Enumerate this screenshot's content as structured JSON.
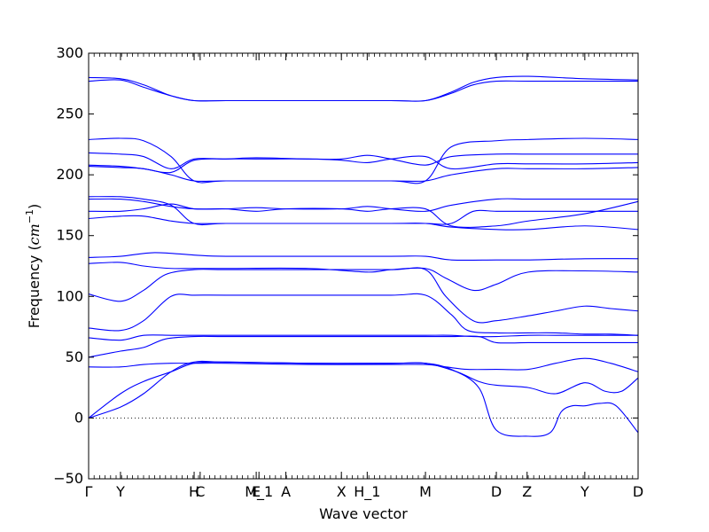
{
  "chart_data": {
    "type": "line",
    "title": "",
    "xlabel": "Wave vector",
    "ylabel": "Frequency ($cm^{-1}$)",
    "ylabel_text": "Frequency (",
    "ylabel_unit": "cm",
    "ylabel_exp": "−1",
    "ylabel_close": ")",
    "ylim": [
      -50,
      300
    ],
    "yticks": [
      -50,
      0,
      50,
      100,
      150,
      200,
      250,
      300
    ],
    "ytick_labels": [
      "−50",
      "0",
      "50",
      "100",
      "150",
      "200",
      "250",
      "300"
    ],
    "xlim": [
      0,
      100
    ],
    "high_symmetry_points": [
      {
        "label": "Γ",
        "x": 0
      },
      {
        "label": "Y",
        "x": 5.8
      },
      {
        "label": "H",
        "x": 19.2
      },
      {
        "label": "C",
        "x": 20.3
      },
      {
        "label": "E",
        "x": 30.5
      },
      {
        "label": "M_1",
        "x": 31.0
      },
      {
        "label": "A",
        "x": 35.9
      },
      {
        "label": "X",
        "x": 46.0
      },
      {
        "label": "H_1",
        "x": 50.7
      },
      {
        "label": "M",
        "x": 61.3
      },
      {
        "label": "D",
        "x": 74.2
      },
      {
        "label": "Z",
        "x": 79.8
      },
      {
        "label": "Y",
        "x": 90.3
      },
      {
        "label": "D",
        "x": 100
      }
    ],
    "grid": false,
    "zero_line": {
      "y": 0,
      "style": "dotted",
      "color": "#000000"
    },
    "line_color": "#0000ff",
    "series": [
      {
        "x": [
          0,
          5.8,
          10,
          15,
          19.2,
          25,
          40,
          55,
          61.3,
          66,
          71,
          74.2,
          80,
          84,
          86,
          88,
          90.3,
          93,
          96,
          100
        ],
        "values": [
          0,
          9,
          20,
          38,
          46,
          46,
          45,
          45,
          45,
          40,
          25,
          -10,
          -15,
          -12,
          5,
          10,
          10,
          12,
          10,
          -12
        ]
      },
      {
        "x": [
          0,
          5.8,
          10,
          15,
          19.2,
          25,
          40,
          55,
          61.3,
          67,
          71,
          74.2,
          80,
          85,
          90.3,
          94,
          97,
          100
        ],
        "values": [
          0,
          20,
          30,
          38,
          45,
          46,
          45,
          45,
          45,
          38,
          30,
          27,
          25,
          20,
          29,
          22,
          22,
          33
        ]
      },
      {
        "x": [
          0,
          5.8,
          10,
          15,
          19.2,
          25,
          40,
          55,
          61.3,
          65,
          69,
          74.2,
          80,
          85,
          90.3,
          95,
          100
        ],
        "values": [
          42,
          42,
          44,
          45,
          45,
          45,
          44,
          44,
          44,
          42,
          40,
          40,
          40,
          45,
          49,
          45,
          38
        ]
      },
      {
        "x": [
          0,
          5.8,
          10,
          14,
          19.2,
          25,
          40,
          55,
          61.3,
          66,
          71,
          74.2,
          80,
          85,
          90.3,
          95,
          100
        ],
        "values": [
          50,
          55,
          58,
          65,
          67,
          67,
          67,
          67,
          67,
          67,
          67,
          62,
          62,
          62,
          62,
          62,
          62
        ]
      },
      {
        "x": [
          0,
          5.8,
          10,
          15,
          19.2,
          25,
          40,
          55,
          61.3,
          66,
          70,
          74.2,
          80,
          85,
          90.3,
          95,
          100
        ],
        "values": [
          66,
          64,
          68,
          68,
          68,
          68,
          68,
          68,
          68,
          68,
          67,
          67,
          68,
          68,
          68,
          68,
          68
        ]
      },
      {
        "x": [
          0,
          5.8,
          10,
          15,
          19.2,
          25,
          40,
          55,
          61.3,
          66,
          69,
          74.2,
          80,
          85,
          90.3,
          95,
          100
        ],
        "values": [
          74,
          72,
          80,
          100,
          101,
          101,
          101,
          101,
          101,
          85,
          72,
          70,
          70,
          70,
          69,
          69,
          68
        ]
      },
      {
        "x": [
          0,
          5.8,
          10,
          14,
          19.2,
          25,
          40,
          55,
          61.3,
          65,
          70,
          74.2,
          80,
          85,
          90.3,
          95,
          100
        ],
        "values": [
          102,
          96,
          105,
          118,
          122,
          122,
          122,
          122,
          122,
          100,
          80,
          80,
          84,
          88,
          92,
          90,
          88
        ]
      },
      {
        "x": [
          0,
          5.8,
          10,
          15,
          19.2,
          25,
          40,
          50.7,
          55,
          61.3,
          65,
          70,
          74.2,
          80,
          90.3,
          100
        ],
        "values": [
          127,
          128,
          125,
          123,
          123,
          123,
          123,
          120,
          122,
          123,
          115,
          105,
          110,
          120,
          121,
          120
        ]
      },
      {
        "x": [
          0,
          5.8,
          12,
          19.2,
          25,
          40,
          55,
          61.3,
          66,
          74.2,
          80,
          90.3,
          100
        ],
        "values": [
          132,
          133,
          136,
          134,
          133,
          133,
          133,
          133,
          130,
          130,
          130,
          131,
          131
        ]
      },
      {
        "x": [
          0,
          5.8,
          10,
          15,
          19.2,
          25,
          40,
          55,
          61.3,
          66,
          74.2,
          80,
          90.3,
          100
        ],
        "values": [
          164,
          166,
          166,
          162,
          160,
          160,
          160,
          160,
          160,
          157,
          155,
          155,
          158,
          155
        ]
      },
      {
        "x": [
          0,
          5.8,
          10,
          15,
          19.2,
          25,
          30.5,
          35.9,
          46,
          50.7,
          55,
          61.3,
          66,
          74.2,
          80,
          90.3,
          100
        ],
        "values": [
          170,
          170,
          172,
          176,
          172,
          172,
          170,
          172,
          172,
          170,
          172,
          172,
          158,
          158,
          162,
          168,
          178
        ]
      },
      {
        "x": [
          0,
          5.8,
          10,
          15,
          19.2,
          25,
          30.5,
          35.9,
          46,
          50.7,
          55,
          61.3,
          66,
          74.2,
          80,
          90.3,
          100
        ],
        "values": [
          180,
          180,
          178,
          174,
          172,
          172,
          173,
          172,
          172,
          174,
          172,
          170,
          175,
          180,
          180,
          180,
          180
        ]
      },
      {
        "x": [
          0,
          5.8,
          10,
          15,
          19.2,
          25,
          40,
          55,
          61.3,
          66,
          70,
          74.2,
          80,
          90.3,
          100
        ],
        "values": [
          182,
          182,
          180,
          175,
          160,
          160,
          160,
          160,
          160,
          160,
          170,
          170,
          170,
          170,
          170
        ]
      },
      {
        "x": [
          0,
          5.8,
          10,
          15,
          19.2,
          25,
          40,
          55,
          61.3,
          66,
          74.2,
          80,
          90.3,
          100
        ],
        "values": [
          207,
          206,
          205,
          200,
          195,
          195,
          195,
          195,
          195,
          200,
          205,
          205,
          205,
          206
        ]
      },
      {
        "x": [
          0,
          5.8,
          10,
          15,
          19.2,
          25,
          30.5,
          40,
          46,
          50.7,
          55,
          61.3,
          66,
          74.2,
          80,
          90.3,
          100
        ],
        "values": [
          208,
          207,
          205,
          202,
          212,
          213,
          213,
          213,
          212,
          210,
          213,
          215,
          205,
          209,
          209,
          209,
          210
        ]
      },
      {
        "x": [
          0,
          5.8,
          10,
          15,
          19.2,
          25,
          30.5,
          40,
          46,
          50.7,
          55,
          61.3,
          66,
          74.2,
          80,
          90.3,
          100
        ],
        "values": [
          218,
          217,
          215,
          205,
          213,
          213,
          214,
          213,
          213,
          216,
          213,
          208,
          215,
          217,
          217,
          217,
          217
        ]
      },
      {
        "x": [
          0,
          5.8,
          10,
          15,
          19.2,
          25,
          40,
          55,
          61.3,
          66,
          74.2,
          80,
          90.3,
          100
        ],
        "values": [
          229,
          230,
          228,
          215,
          195,
          195,
          195,
          195,
          195,
          223,
          228,
          229,
          230,
          229
        ]
      },
      {
        "x": [
          0,
          5.8,
          10,
          15,
          19.2,
          25,
          40,
          55,
          61.3,
          66,
          70,
          74.2,
          80,
          90.3,
          100
        ],
        "values": [
          277,
          278,
          272,
          265,
          261,
          261,
          261,
          261,
          261,
          267,
          274,
          277,
          277,
          277,
          277
        ]
      },
      {
        "x": [
          0,
          5.8,
          10,
          15,
          19.2,
          25,
          40,
          55,
          61.3,
          66,
          70,
          74.2,
          80,
          90.3,
          100
        ],
        "values": [
          280,
          279,
          274,
          265,
          261,
          261,
          261,
          261,
          261,
          268,
          276,
          280,
          281,
          279,
          278
        ]
      }
    ]
  }
}
